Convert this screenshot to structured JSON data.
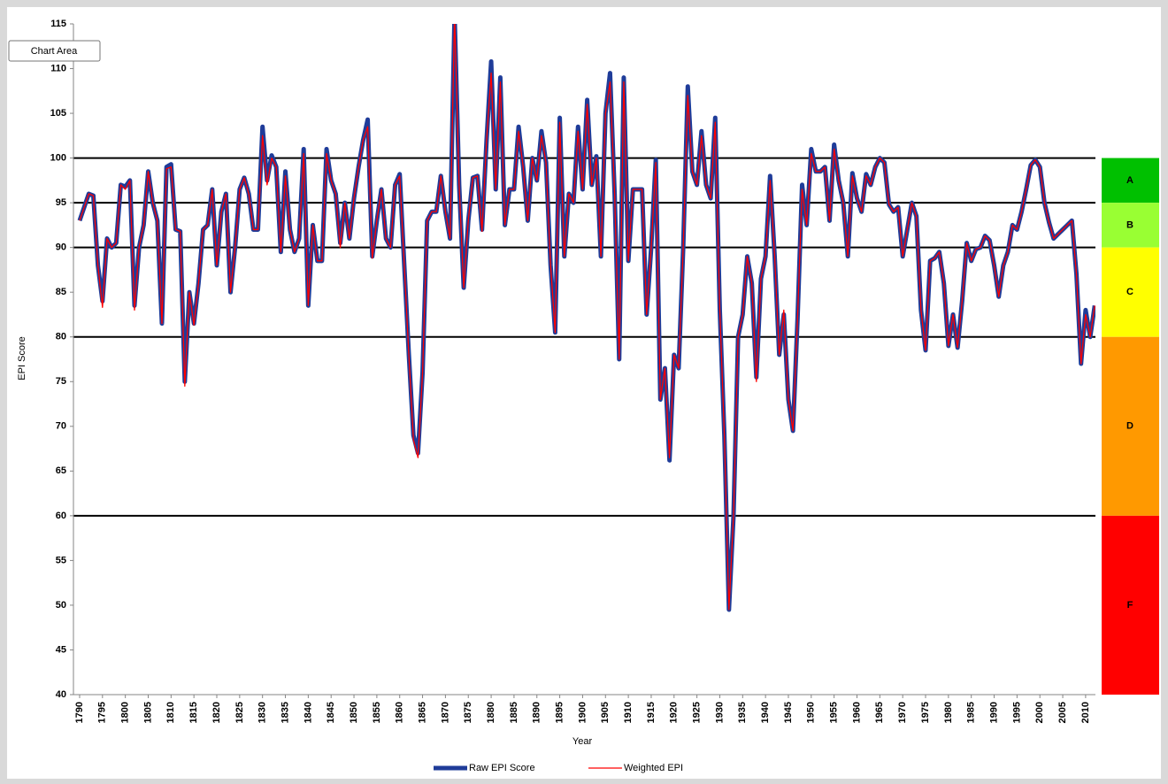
{
  "chart_data": {
    "type": "line",
    "tooltip": "Chart Area",
    "xlabel": "Year",
    "ylabel": "EPI Score",
    "xlim": [
      1788.65,
      2012.15
    ],
    "ylim": [
      40,
      115
    ],
    "yticks": [
      40,
      45,
      50,
      55,
      60,
      65,
      70,
      75,
      80,
      85,
      90,
      95,
      100,
      105,
      110,
      115
    ],
    "xticks": [
      1790,
      1795,
      1800,
      1805,
      1810,
      1815,
      1820,
      1825,
      1830,
      1835,
      1840,
      1845,
      1850,
      1855,
      1860,
      1865,
      1870,
      1875,
      1880,
      1885,
      1890,
      1895,
      1900,
      1905,
      1910,
      1915,
      1920,
      1925,
      1930,
      1935,
      1940,
      1945,
      1950,
      1955,
      1960,
      1965,
      1970,
      1975,
      1980,
      1985,
      1990,
      1995,
      2000,
      2005,
      2010
    ],
    "grade_bands": [
      {
        "label": "A",
        "from": 95,
        "to": 100,
        "color": "#00c000"
      },
      {
        "label": "B",
        "from": 90,
        "to": 95,
        "color": "#99ff33"
      },
      {
        "label": "C",
        "from": 80,
        "to": 90,
        "color": "#ffff00"
      },
      {
        "label": "D",
        "from": 60,
        "to": 80,
        "color": "#ff9900"
      },
      {
        "label": "F",
        "from": 40,
        "to": 60,
        "color": "#ff0000"
      }
    ],
    "x": [
      1790,
      1791,
      1792,
      1793,
      1794,
      1795,
      1796,
      1797,
      1798,
      1799,
      1800,
      1801,
      1802,
      1803,
      1804,
      1805,
      1806,
      1807,
      1808,
      1809,
      1810,
      1811,
      1812,
      1813,
      1814,
      1815,
      1816,
      1817,
      1818,
      1819,
      1820,
      1821,
      1822,
      1823,
      1824,
      1825,
      1826,
      1827,
      1828,
      1829,
      1830,
      1831,
      1832,
      1833,
      1834,
      1835,
      1836,
      1837,
      1838,
      1839,
      1840,
      1841,
      1842,
      1843,
      1844,
      1845,
      1846,
      1847,
      1848,
      1849,
      1850,
      1851,
      1852,
      1853,
      1854,
      1855,
      1856,
      1857,
      1858,
      1859,
      1860,
      1861,
      1862,
      1863,
      1864,
      1865,
      1866,
      1867,
      1868,
      1869,
      1870,
      1871,
      1872,
      1873,
      1874,
      1875,
      1876,
      1877,
      1878,
      1879,
      1880,
      1881,
      1882,
      1883,
      1884,
      1885,
      1886,
      1887,
      1888,
      1889,
      1890,
      1891,
      1892,
      1893,
      1894,
      1895,
      1896,
      1897,
      1898,
      1899,
      1900,
      1901,
      1902,
      1903,
      1904,
      1905,
      1906,
      1907,
      1908,
      1909,
      1910,
      1911,
      1912,
      1913,
      1914,
      1915,
      1916,
      1917,
      1918,
      1919,
      1920,
      1921,
      1922,
      1923,
      1924,
      1925,
      1926,
      1927,
      1928,
      1929,
      1930,
      1931,
      1932,
      1933,
      1934,
      1935,
      1936,
      1937,
      1938,
      1939,
      1940,
      1941,
      1942,
      1943,
      1944,
      1945,
      1946,
      1947,
      1948,
      1949,
      1950,
      1951,
      1952,
      1953,
      1954,
      1955,
      1956,
      1957,
      1958,
      1959,
      1960,
      1961,
      1962,
      1963,
      1964,
      1965,
      1966,
      1967,
      1968,
      1969,
      1970,
      1971,
      1972,
      1973,
      1974,
      1975,
      1976,
      1977,
      1978,
      1979,
      1980,
      1981,
      1982,
      1983,
      1984,
      1985,
      1986,
      1987,
      1988,
      1989,
      1990,
      1991,
      1992,
      1993,
      1994,
      1995,
      1996,
      1997,
      1998,
      1999,
      2000,
      2001,
      2002,
      2003,
      2004,
      2005,
      2006,
      2007,
      2008,
      2009,
      2010,
      2011,
      2012
    ],
    "series": [
      {
        "name": "Raw EPI Score",
        "color": "#1f3c99",
        "width": 5,
        "values": [
          93,
          94.5,
          96,
          95.8,
          88,
          84,
          91,
          90,
          90.5,
          97,
          96.8,
          97.5,
          83.5,
          90,
          92.5,
          98.5,
          95,
          93,
          81.5,
          99,
          99.3,
          92,
          91.8,
          75,
          85,
          81.5,
          86,
          92,
          92.5,
          96.5,
          88,
          94,
          96,
          85,
          90,
          96.5,
          97.8,
          96,
          92,
          92,
          103.5,
          97.5,
          100.3,
          99,
          89.5,
          98.5,
          92,
          89.5,
          91,
          101,
          83.5,
          92.5,
          88.5,
          88.5,
          101,
          97.5,
          96,
          90.5,
          95,
          91,
          95.5,
          99,
          102,
          104.3,
          89,
          93,
          96.5,
          91,
          90,
          97,
          98.2,
          88,
          78,
          69,
          67,
          76,
          93,
          94,
          94,
          98,
          94,
          91,
          116,
          97,
          85.5,
          93,
          97.8,
          98,
          92,
          102,
          110.8,
          96.5,
          109,
          92.5,
          96.5,
          96.5,
          103.5,
          99,
          93,
          100,
          97.5,
          103,
          99.5,
          88,
          80.5,
          104.5,
          89,
          96,
          95,
          103.5,
          96.5,
          106.5,
          97,
          100.2,
          89,
          105,
          109.5,
          96,
          77.5,
          109,
          88.5,
          96.5,
          96.5,
          96.5,
          82.5,
          90,
          99.8,
          73,
          76.5,
          66.2,
          78,
          76.5,
          90,
          108,
          98.5,
          97,
          103,
          97,
          95.5,
          104.5,
          83,
          69,
          49.5,
          60,
          80,
          82.5,
          89,
          86,
          75.5,
          86.5,
          89,
          98,
          89,
          78,
          82.5,
          73,
          69.5,
          82,
          97,
          92.5,
          101,
          98.5,
          98.5,
          99,
          93,
          101.5,
          97.5,
          95,
          89,
          98.3,
          95.5,
          94,
          98.2,
          97,
          99,
          100,
          99.5,
          94.8,
          94,
          94.5,
          89,
          92,
          95,
          93.5,
          83,
          78.5,
          88.5,
          88.8,
          89.5,
          86,
          79,
          82.5,
          78.8,
          84,
          90.5,
          88.5,
          89.8,
          90,
          91.3,
          90.8,
          88,
          84.5,
          88,
          89.5,
          92.5,
          92,
          94,
          96.5,
          99.2,
          99.8,
          99,
          95,
          92.8,
          91,
          91.5,
          92,
          92.5,
          93,
          87,
          77,
          83,
          80,
          83.5
        ]
      },
      {
        "name": "Weighted EPI",
        "color": "#ff0000",
        "width": 1.3,
        "values": [
          93,
          94.5,
          96,
          95.8,
          88,
          83.3,
          91,
          90,
          90.5,
          97,
          96.5,
          97.5,
          83,
          90,
          92.5,
          98.5,
          95,
          93,
          81.5,
          98.8,
          99,
          92,
          91.8,
          74.5,
          85,
          81.3,
          86,
          92,
          92.5,
          96.5,
          88,
          94,
          96,
          85,
          90,
          96.5,
          97.8,
          96,
          92,
          92,
          102.5,
          97,
          100,
          99,
          89.5,
          98,
          92,
          89.5,
          91,
          100.5,
          83.5,
          92.5,
          88.5,
          88.5,
          100.5,
          97.5,
          96,
          90,
          95,
          91,
          95.5,
          99,
          102,
          103.5,
          88.8,
          93,
          96.5,
          91,
          90,
          97,
          98,
          88,
          78,
          68.5,
          66.5,
          76,
          93,
          94,
          94,
          98,
          94,
          91,
          116,
          97,
          85.5,
          93,
          97.8,
          98,
          91.8,
          102,
          109.5,
          96.5,
          108.5,
          92.5,
          96.5,
          96.5,
          103,
          99,
          93,
          100,
          97.5,
          102.5,
          99.5,
          88,
          80.5,
          104,
          89,
          96,
          95,
          103,
          96.5,
          106,
          97,
          100,
          89,
          105,
          108.5,
          96,
          77.5,
          108.5,
          88.5,
          96.5,
          96.5,
          96.5,
          82.5,
          90,
          99.5,
          73,
          76.5,
          66.5,
          78,
          76.5,
          90,
          107,
          98.5,
          97,
          102.5,
          97,
          95.5,
          104,
          83,
          69,
          49.5,
          60,
          80,
          82.5,
          89,
          86,
          75,
          86.5,
          89,
          97.5,
          89,
          78,
          83,
          73,
          69.5,
          82,
          96.5,
          92.5,
          100.5,
          98.5,
          98.5,
          99,
          93,
          101,
          97.5,
          95,
          89,
          98,
          95.5,
          94,
          98,
          97,
          99,
          100,
          99.5,
          94.8,
          94,
          94.5,
          89,
          92,
          95,
          93.5,
          83,
          78.5,
          88.5,
          88.8,
          89.5,
          86,
          79,
          82.5,
          78.8,
          84,
          90.5,
          88.5,
          89.8,
          90,
          91.3,
          90.8,
          88,
          84.5,
          88,
          89.5,
          92.5,
          92,
          94,
          96.5,
          99.2,
          99.8,
          99,
          95,
          92.8,
          91,
          91.5,
          92,
          92.5,
          93,
          87,
          77,
          82.5,
          80,
          83.5
        ]
      }
    ]
  }
}
